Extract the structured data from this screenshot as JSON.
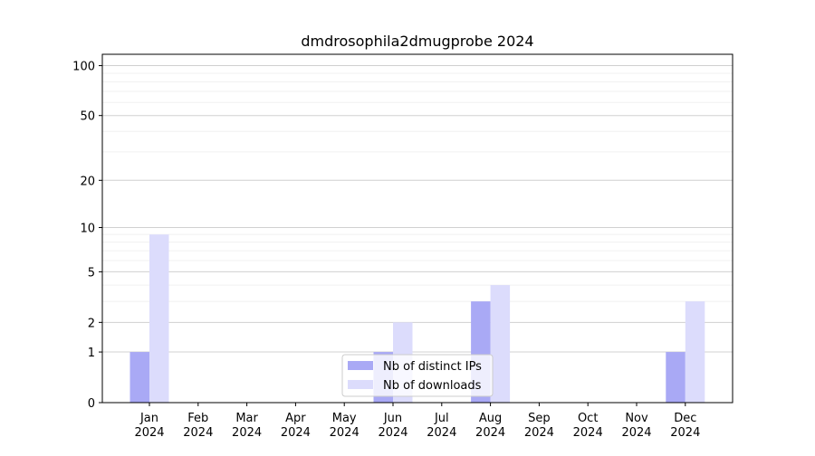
{
  "chart_data": {
    "type": "bar",
    "title": "dmdrosophila2dmugprobe 2024",
    "categories": [
      "Jan 2024",
      "Feb 2024",
      "Mar 2024",
      "Apr 2024",
      "May 2024",
      "Jun 2024",
      "Jul 2024",
      "Aug 2024",
      "Sep 2024",
      "Oct 2024",
      "Nov 2024",
      "Dec 2024"
    ],
    "series": [
      {
        "name": "Nb of distinct IPs",
        "color": "#a9a9f5",
        "values": [
          1,
          0,
          0,
          0,
          0,
          1,
          0,
          3,
          0,
          0,
          0,
          1
        ]
      },
      {
        "name": "Nb of downloads",
        "color": "#dcdcfc",
        "values": [
          9,
          0,
          0,
          0,
          0,
          2,
          0,
          4,
          0,
          0,
          0,
          3
        ]
      }
    ],
    "yscale": "log1p",
    "ylim": [
      0,
      117
    ],
    "yticks": [
      0,
      1,
      2,
      5,
      10,
      20,
      50,
      100
    ],
    "minor_yticks": [
      3,
      4,
      6,
      7,
      8,
      9,
      30,
      40,
      60,
      70,
      80,
      90
    ],
    "grid": true,
    "legend": "lower center"
  }
}
